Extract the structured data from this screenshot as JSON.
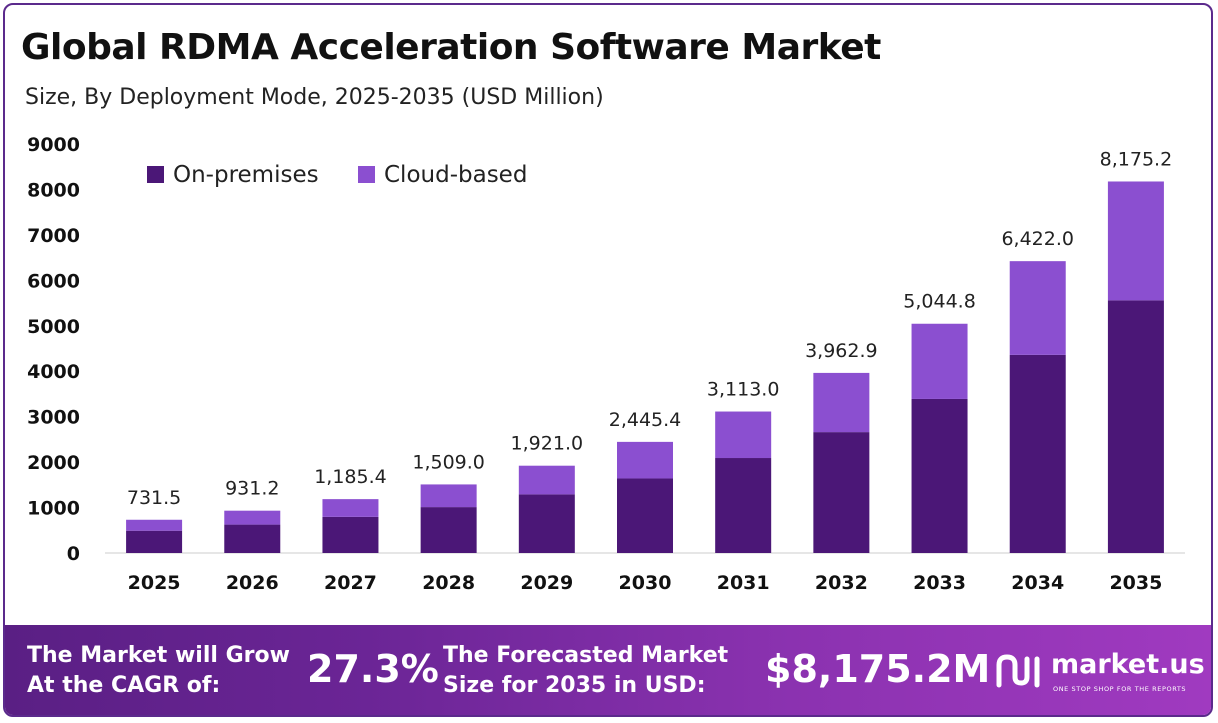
{
  "header": {
    "title": "Global RDMA Acceleration Software Market",
    "subtitle": "Size, By Deployment Mode, 2025-2035 (USD Million)"
  },
  "chart_data": {
    "type": "bar",
    "stacked": true,
    "categories": [
      "2025",
      "2026",
      "2027",
      "2028",
      "2029",
      "2030",
      "2031",
      "2032",
      "2033",
      "2034",
      "2035"
    ],
    "series": [
      {
        "name": "On-premises",
        "color": "#4b1777",
        "values": [
          490,
          625,
          795,
          1010,
          1290,
          1640,
          2090,
          2660,
          3390,
          4360,
          5560
        ]
      },
      {
        "name": "Cloud-based",
        "color": "#8b4fd0",
        "values": [
          241.5,
          306.2,
          390.4,
          499.0,
          631.0,
          805.4,
          1023.0,
          1302.9,
          1654.8,
          2062.0,
          2615.2
        ]
      }
    ],
    "totals": [
      "731.5",
      "931.2",
      "1,185.4",
      "1,509.0",
      "1,921.0",
      "2,445.4",
      "3,113.0",
      "3,962.9",
      "5,044.8",
      "6,422.0",
      "8,175.2"
    ],
    "yticks": [
      "0",
      "1000",
      "2000",
      "3000",
      "4000",
      "5000",
      "6000",
      "7000",
      "8000",
      "9000"
    ],
    "ylim": [
      0,
      9000
    ],
    "legend_position": "top-left",
    "grid": false
  },
  "footer": {
    "cagr_label_line1": "The Market will Grow",
    "cagr_label_line2": "At the CAGR of:",
    "cagr_value": "27.3%",
    "forecast_label_line1": "The Forecasted Market",
    "forecast_label_line2": "Size for 2035 in USD:",
    "forecast_value": "$8,175.2M",
    "brand": "market.us",
    "tagline": "ONE STOP SHOP FOR THE REPORTS"
  }
}
